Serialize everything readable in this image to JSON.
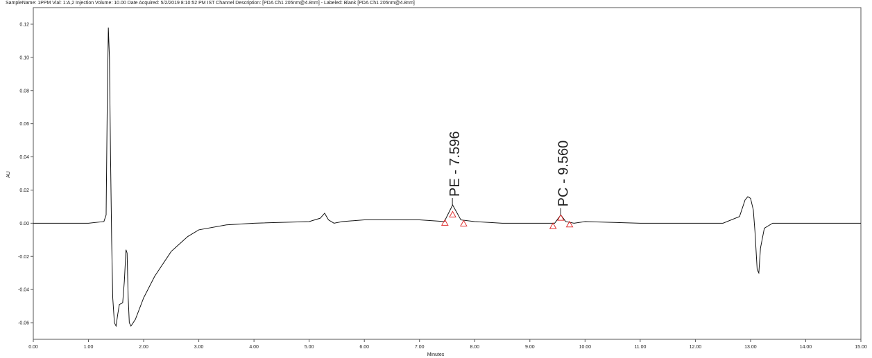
{
  "chart_data": {
    "type": "line",
    "title": "SampleName: 1PPM Vial: 1:A,2 Injection Volume: 10.00 Date Acquired: 5/2/2019 8:10:52 PM IST Channel Description: [PDA Ch1 205nm@4.8nm] - Labeled: Blank [PDA Ch1 205nm@4.8nm]",
    "xlabel": "Minutes",
    "ylabel": "AU",
    "xlim": [
      0,
      15
    ],
    "ylim": [
      -0.07,
      0.13
    ],
    "xticks": [
      {
        "value": 0,
        "label": "0.00"
      },
      {
        "value": 1,
        "label": "1.00"
      },
      {
        "value": 2,
        "label": "2.00"
      },
      {
        "value": 3,
        "label": "3.00"
      },
      {
        "value": 4,
        "label": "4.00"
      },
      {
        "value": 5,
        "label": "5.00"
      },
      {
        "value": 6,
        "label": "6.00"
      },
      {
        "value": 7,
        "label": "7.00"
      },
      {
        "value": 8,
        "label": "8.00"
      },
      {
        "value": 9,
        "label": "9.00"
      },
      {
        "value": 10,
        "label": "10.00"
      },
      {
        "value": 11,
        "label": "11.00"
      },
      {
        "value": 12,
        "label": "12.00"
      },
      {
        "value": 13,
        "label": "13.00"
      },
      {
        "value": 14,
        "label": "14.00"
      },
      {
        "value": 15,
        "label": "15.00"
      }
    ],
    "yticks": [
      -0.06,
      -0.04,
      -0.02,
      {
        "value": 0,
        "label": "0.00"
      },
      0.02,
      0.04,
      0.06,
      0.08,
      {
        "value": 0.1,
        "label": "0.10"
      },
      0.12
    ],
    "series": [
      {
        "color": "#111111",
        "x": [
          0,
          1.0,
          1.28,
          1.32,
          1.34,
          1.36,
          1.38,
          1.4,
          1.42,
          1.44,
          1.47,
          1.5,
          1.53,
          1.56,
          1.62,
          1.65,
          1.68,
          1.7,
          1.72,
          1.74,
          1.77,
          1.85,
          2.0,
          2.2,
          2.5,
          2.8,
          3.0,
          3.5,
          4.0,
          5.0,
          5.2,
          5.28,
          5.35,
          5.45,
          5.6,
          6.0,
          7.0,
          7.45,
          7.6,
          7.75,
          8.0,
          8.5,
          9.0,
          9.45,
          9.56,
          9.65,
          9.8,
          10.0,
          11.0,
          12.0,
          12.5,
          12.8,
          12.9,
          12.95,
          13.0,
          13.05,
          13.08,
          13.12,
          13.15,
          13.18,
          13.25,
          13.4,
          14.0,
          15.0
        ],
        "values": [
          0,
          0,
          0.001,
          0.005,
          0.07,
          0.118,
          0.1,
          0.04,
          -0.01,
          -0.045,
          -0.06,
          -0.062,
          -0.055,
          -0.049,
          -0.048,
          -0.035,
          -0.016,
          -0.018,
          -0.045,
          -0.06,
          -0.062,
          -0.058,
          -0.045,
          -0.032,
          -0.017,
          -0.008,
          -0.004,
          -0.001,
          0,
          0.001,
          0.003,
          0.006,
          0.002,
          0,
          0.001,
          0.002,
          0.002,
          0.001,
          0.011,
          0.002,
          0.001,
          0,
          0,
          0,
          0.005,
          0.001,
          0,
          0.001,
          0,
          0,
          0,
          0.004,
          0.014,
          0.016,
          0.015,
          0.008,
          -0.005,
          -0.028,
          -0.03,
          -0.015,
          -0.003,
          0,
          0,
          0
        ]
      }
    ],
    "peak_markers": {
      "color": "#e03030",
      "x": [
        7.46,
        7.6,
        7.8,
        9.42,
        9.56,
        9.72
      ],
      "values": [
        0,
        0.005,
        -0.0005,
        -0.002,
        0.003,
        -0.001
      ]
    },
    "annotations": [
      {
        "text": "PE - 7.596",
        "x": 7.596,
        "y": 0.011
      },
      {
        "text": "PC - 9.560",
        "x": 9.56,
        "y": 0.005
      }
    ]
  }
}
